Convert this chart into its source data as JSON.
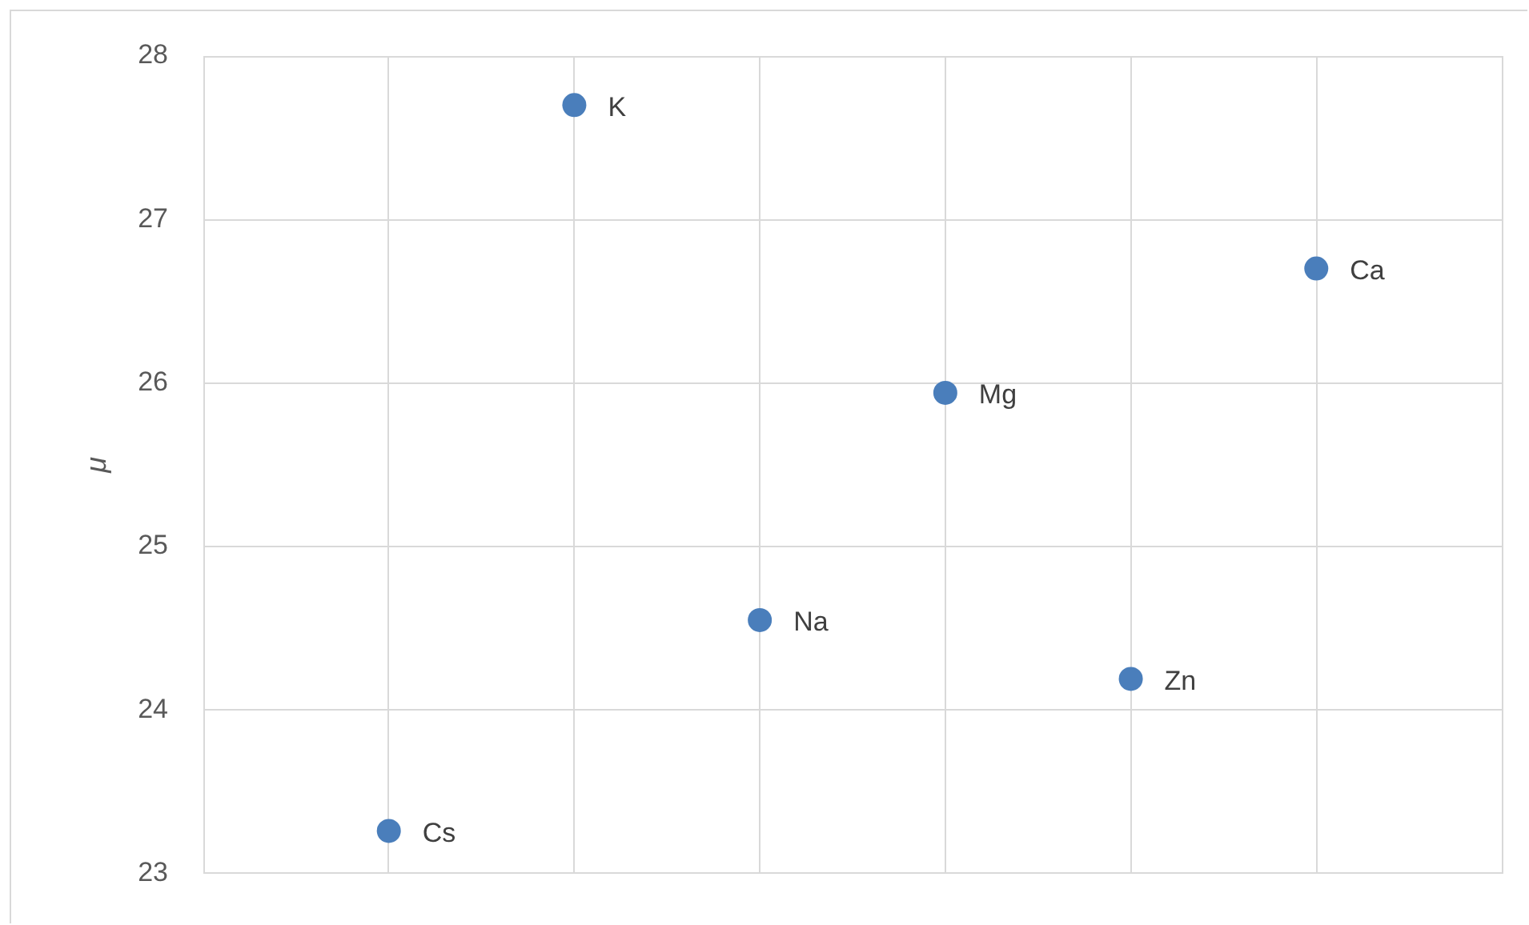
{
  "chart_data": {
    "type": "scatter",
    "ylabel": "μ",
    "categories": [
      null,
      null,
      null,
      null,
      null,
      null
    ],
    "values": [
      23.26,
      27.7,
      24.55,
      25.94,
      24.19,
      26.7
    ],
    "value_labels": [
      "Cs",
      "K",
      "Na",
      "Mg",
      "Zn",
      "Ca"
    ],
    "color": "#4a7ebb",
    "ylim": [
      23,
      28
    ],
    "yticks": [
      23,
      24,
      25,
      26,
      27,
      28
    ],
    "grid": true,
    "legend": false,
    "marker": "circle",
    "tick_labels": "y"
  }
}
